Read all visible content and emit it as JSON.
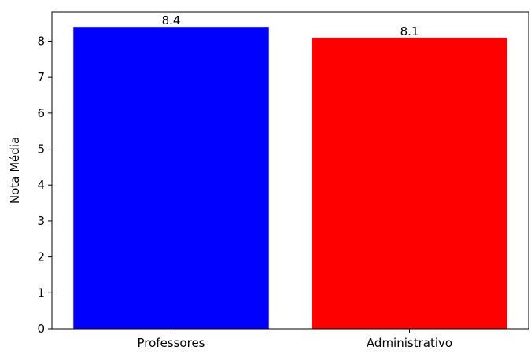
{
  "chart_data": {
    "type": "bar",
    "categories": [
      "Professores",
      "Administrativo"
    ],
    "values": [
      8.4,
      8.1
    ],
    "data_labels": [
      "8.4",
      "8.1"
    ],
    "colors": [
      "#0000ff",
      "#ff0000"
    ],
    "title": "",
    "xlabel": "",
    "ylabel": "Nota Média",
    "ylim": [
      0,
      8.82
    ],
    "yticks": [
      0,
      1,
      2,
      3,
      4,
      5,
      6,
      7,
      8
    ],
    "ytick_labels": [
      "0",
      "1",
      "2",
      "3",
      "4",
      "5",
      "6",
      "7",
      "8"
    ],
    "grid": false,
    "legend": "none"
  }
}
